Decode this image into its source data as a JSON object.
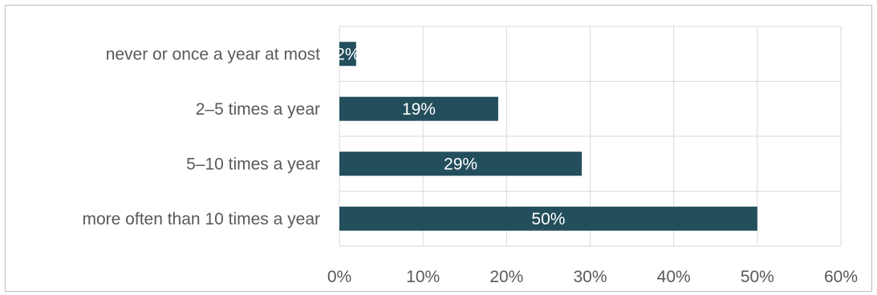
{
  "chart_data": {
    "type": "bar",
    "orientation": "horizontal",
    "categories": [
      "never or once a year at most",
      "2–5 times a year",
      "5–10 times a year",
      "more often than 10 times a year"
    ],
    "values": [
      2,
      19,
      29,
      50
    ],
    "data_labels": [
      "2%",
      "19%",
      "29%",
      "50%"
    ],
    "xlim": [
      0,
      60
    ],
    "x_ticks": [
      0,
      10,
      20,
      30,
      40,
      50,
      60
    ],
    "x_tick_labels": [
      "0%",
      "10%",
      "20%",
      "30%",
      "40%",
      "50%",
      "60%"
    ],
    "grid": true,
    "bar_color": "#234e5c",
    "grid_color": "#d9d9d9"
  }
}
